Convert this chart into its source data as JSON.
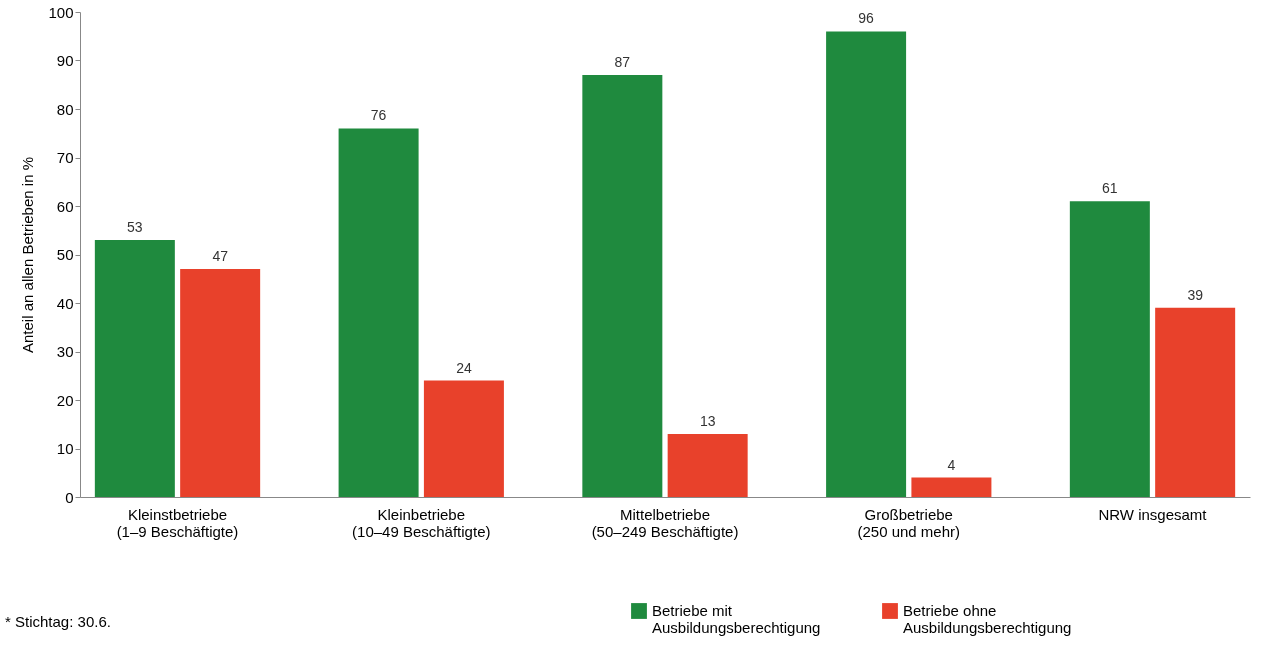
{
  "chart_data": {
    "type": "bar",
    "ylabel": "Anteil an allen Betrieben in %",
    "categories": [
      "Kleinstbetriebe\n(1–9 Beschäftigte)",
      "Kleinbetriebe\n(10–49 Beschäftigte)",
      "Mittelbetriebe\n(50–249 Beschäftigte)",
      "Großbetriebe\n(250 und mehr)",
      "NRW insgesamt"
    ],
    "series": [
      {
        "name": "Betriebe mit\nAusbildungsberechtigung",
        "color": "#1f8a3e",
        "values": [
          53,
          76,
          87,
          96,
          61
        ]
      },
      {
        "name": "Betriebe ohne\nAusbildungsberechtigung",
        "color": "#e8412b",
        "values": [
          47,
          24,
          13,
          4,
          39
        ]
      }
    ],
    "ylim": [
      0,
      100
    ],
    "yticks": [
      0,
      10,
      20,
      30,
      40,
      50,
      60,
      70,
      80,
      90,
      100
    ],
    "grid": false,
    "data_labels": true,
    "legend": "bottom right",
    "annotations": [
      "* Stichtag: 30.6."
    ]
  }
}
